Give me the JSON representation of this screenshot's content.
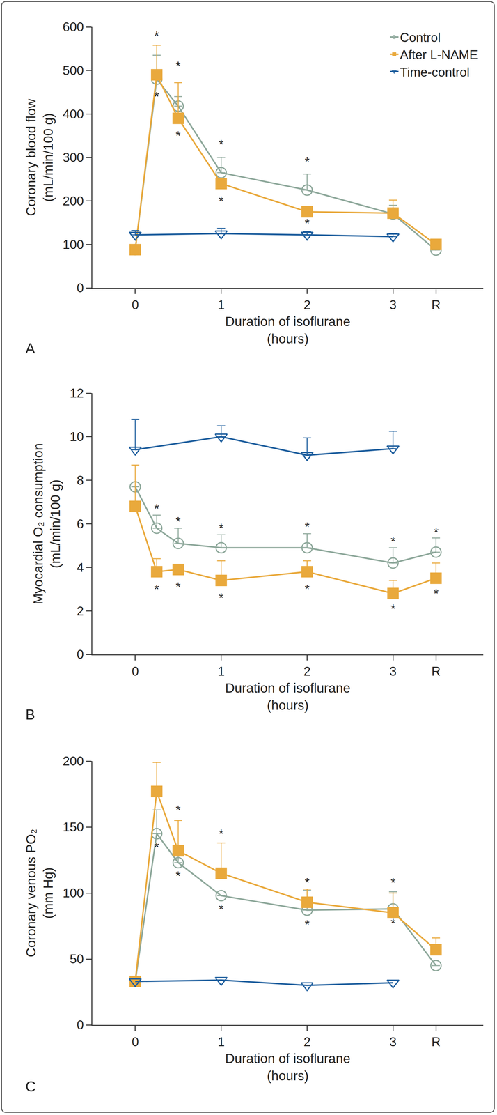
{
  "chart_data": [
    {
      "type": "line",
      "label": "A",
      "ylabel": [
        "Coronary blood flow",
        "(mL/min/100 g)"
      ],
      "xlabel": [
        "Duration of isoflurane",
        "(hours)"
      ],
      "xlim": [
        -0.5,
        4.05
      ],
      "xticks": [
        0,
        1,
        2,
        3,
        {
          "value": 3.5,
          "label": "R"
        }
      ],
      "ylim": [
        0,
        600
      ],
      "yticks": [
        0,
        100,
        200,
        300,
        400,
        500,
        600
      ],
      "grid": false,
      "legend": "top right",
      "series": [
        {
          "name": "Control",
          "color": "#8ea89b",
          "marker": "circle-open",
          "line_style": "solid",
          "x": [
            0,
            0.25,
            0.5,
            1,
            2,
            3,
            3.5
          ],
          "values": [
            88,
            480,
            418,
            265,
            225,
            170,
            87
          ],
          "errors": [
            null,
            55,
            22,
            35,
            37,
            20,
            null
          ]
        },
        {
          "name": "After L-NAME",
          "color": "#e9a93c",
          "marker": "square",
          "line_style": "solid",
          "x": [
            0,
            0.25,
            0.5,
            1,
            2,
            3,
            3.5
          ],
          "values": [
            88,
            490,
            390,
            240,
            175,
            172,
            100
          ],
          "errors": [
            null,
            68,
            82,
            null,
            10,
            30,
            null
          ]
        },
        {
          "name": "Time-control",
          "color": "#1f5f9e",
          "marker": "triangle-down-open",
          "line_style": "solid",
          "x": [
            0,
            1,
            2,
            3
          ],
          "values": [
            122,
            125,
            122,
            118
          ],
          "errors": [
            10,
            12,
            8,
            7
          ]
        }
      ],
      "annotations": [
        {
          "text": "*",
          "x": 0.25,
          "y": 580
        },
        {
          "text": "*",
          "x": 0.25,
          "y": 440
        },
        {
          "text": "*",
          "x": 0.5,
          "y": 510
        },
        {
          "text": "*",
          "x": 0.5,
          "y": 350
        },
        {
          "text": "*",
          "x": 1,
          "y": 330
        },
        {
          "text": "*",
          "x": 1,
          "y": 200
        },
        {
          "text": "*",
          "x": 2,
          "y": 290
        },
        {
          "text": "*",
          "x": 2,
          "y": 148
        }
      ]
    },
    {
      "type": "line",
      "label": "B",
      "ylabel": [
        "Myocardial O₂ consumption",
        "(mL/min/100 g)"
      ],
      "xlabel": [
        "Duration of isoflurane",
        "(hours)"
      ],
      "xlim": [
        -0.5,
        4.05
      ],
      "xticks": [
        0,
        1,
        2,
        3,
        {
          "value": 3.5,
          "label": "R"
        }
      ],
      "ylim": [
        0,
        12
      ],
      "yticks": [
        0,
        2,
        4,
        6,
        8,
        10,
        12
      ],
      "grid": false,
      "legend": false,
      "series": [
        {
          "name": "Control",
          "color": "#8ea89b",
          "marker": "circle-open",
          "line_style": "solid",
          "x": [
            0,
            0.25,
            0.5,
            1,
            2,
            3,
            3.5
          ],
          "values": [
            7.7,
            5.8,
            5.1,
            4.9,
            4.9,
            4.2,
            4.7
          ],
          "errors": [
            null,
            0.6,
            0.7,
            0.6,
            0.65,
            0.7,
            0.65
          ]
        },
        {
          "name": "After L-NAME",
          "color": "#e9a93c",
          "marker": "square",
          "line_style": "solid",
          "x": [
            0,
            0.25,
            0.5,
            1,
            2,
            3,
            3.5
          ],
          "values": [
            6.8,
            3.8,
            3.9,
            3.4,
            3.8,
            2.8,
            3.5
          ],
          "errors": [
            1.9,
            0.6,
            null,
            0.9,
            0.5,
            0.6,
            0.7
          ]
        },
        {
          "name": "Time-control",
          "color": "#1f5f9e",
          "marker": "triangle-down-open",
          "line_style": "solid",
          "x": [
            0,
            1,
            2,
            3
          ],
          "values": [
            9.4,
            10.0,
            9.15,
            9.45
          ],
          "errors": [
            1.4,
            0.5,
            0.8,
            0.8
          ]
        }
      ],
      "annotations": [
        {
          "text": "*",
          "x": 0.25,
          "y": 6.7
        },
        {
          "text": "*",
          "x": 0.25,
          "y": 3.0
        },
        {
          "text": "*",
          "x": 0.5,
          "y": 6.1
        },
        {
          "text": "*",
          "x": 0.5,
          "y": 3.1
        },
        {
          "text": "*",
          "x": 1,
          "y": 5.8
        },
        {
          "text": "*",
          "x": 1,
          "y": 2.6
        },
        {
          "text": "*",
          "x": 2,
          "y": 5.85
        },
        {
          "text": "*",
          "x": 2,
          "y": 3.0
        },
        {
          "text": "*",
          "x": 3,
          "y": 5.2
        },
        {
          "text": "*",
          "x": 3,
          "y": 2.1
        },
        {
          "text": "*",
          "x": 3.5,
          "y": 5.6
        },
        {
          "text": "*",
          "x": 3.5,
          "y": 2.8
        }
      ]
    },
    {
      "type": "line",
      "label": "C",
      "ylabel": [
        "Coronary venous PO₂",
        "(mm Hg)"
      ],
      "xlabel": [
        "Duration of isoflurane",
        "(hours)"
      ],
      "xlim": [
        -0.5,
        4.05
      ],
      "xticks": [
        0,
        1,
        2,
        3,
        {
          "value": 3.5,
          "label": "R"
        }
      ],
      "ylim": [
        0,
        200
      ],
      "yticks": [
        0,
        50,
        100,
        150,
        200
      ],
      "grid": false,
      "legend": false,
      "series": [
        {
          "name": "Control",
          "color": "#8ea89b",
          "marker": "circle-open",
          "line_style": "solid",
          "x": [
            0,
            0.25,
            0.5,
            1,
            2,
            3,
            3.5
          ],
          "values": [
            33,
            145,
            123,
            98,
            87,
            88,
            45
          ],
          "errors": [
            null,
            18,
            12,
            null,
            15,
            13,
            null
          ]
        },
        {
          "name": "After L-NAME",
          "color": "#e9a93c",
          "marker": "square",
          "line_style": "solid",
          "x": [
            0,
            0.25,
            0.5,
            1,
            2,
            3,
            3.5
          ],
          "values": [
            33,
            177,
            132,
            115,
            93,
            85,
            57
          ],
          "errors": [
            null,
            22,
            23,
            23,
            10,
            15,
            9
          ]
        },
        {
          "name": "Time-control",
          "color": "#1f5f9e",
          "marker": "triangle-down-open",
          "line_style": "solid",
          "x": [
            0,
            1,
            2,
            3
          ],
          "values": [
            33,
            34,
            30,
            32
          ],
          "errors": [
            null,
            null,
            null,
            null
          ]
        }
      ],
      "annotations": [
        {
          "text": "*",
          "x": 0.25,
          "y": 207
        },
        {
          "text": "*",
          "x": 0.25,
          "y": 135
        },
        {
          "text": "*",
          "x": 0.5,
          "y": 163
        },
        {
          "text": "*",
          "x": 0.5,
          "y": 113
        },
        {
          "text": "*",
          "x": 1,
          "y": 145
        },
        {
          "text": "*",
          "x": 1,
          "y": 88
        },
        {
          "text": "*",
          "x": 2,
          "y": 108
        },
        {
          "text": "*",
          "x": 2,
          "y": 76
        },
        {
          "text": "*",
          "x": 3,
          "y": 108
        },
        {
          "text": "*",
          "x": 3,
          "y": 77
        }
      ]
    }
  ]
}
